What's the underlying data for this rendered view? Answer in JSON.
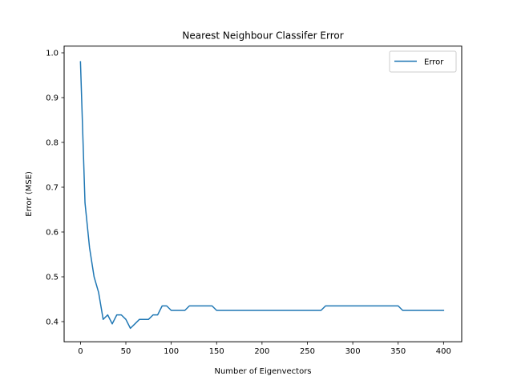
{
  "chart_data": {
    "type": "line",
    "title": "Nearest Neighbour Classifer Error",
    "xlabel": "Number of Eigenvectors",
    "ylabel": "Error (MSE)",
    "xlim": [
      -18,
      420
    ],
    "ylim": [
      0.355,
      1.015
    ],
    "xticks": [
      0,
      50,
      100,
      150,
      200,
      250,
      300,
      350,
      400
    ],
    "yticks": [
      0.4,
      0.5,
      0.6,
      0.7,
      0.8,
      0.9,
      1.0
    ],
    "ytick_labels": [
      "0.4",
      "0.5",
      "0.6",
      "0.7",
      "0.8",
      "0.9",
      "1.0"
    ],
    "grid": false,
    "legend": {
      "position": "top-right",
      "entries": [
        "Error"
      ]
    },
    "series": [
      {
        "name": "Error",
        "color": "#1f77b4",
        "x": [
          0,
          5,
          10,
          15,
          20,
          25,
          30,
          35,
          40,
          45,
          50,
          55,
          60,
          65,
          70,
          75,
          80,
          85,
          90,
          95,
          100,
          105,
          110,
          115,
          120,
          125,
          130,
          135,
          140,
          145,
          150,
          155,
          160,
          165,
          170,
          175,
          180,
          185,
          190,
          195,
          200,
          205,
          210,
          215,
          220,
          225,
          230,
          235,
          240,
          245,
          250,
          255,
          260,
          265,
          270,
          275,
          280,
          285,
          290,
          295,
          300,
          305,
          310,
          315,
          320,
          325,
          330,
          335,
          340,
          345,
          350,
          355,
          360,
          365,
          370,
          375,
          380,
          385,
          390,
          395,
          400
        ],
        "values": [
          0.98,
          0.665,
          0.565,
          0.5,
          0.465,
          0.405,
          0.415,
          0.395,
          0.415,
          0.415,
          0.405,
          0.385,
          0.395,
          0.405,
          0.405,
          0.405,
          0.415,
          0.415,
          0.435,
          0.435,
          0.425,
          0.425,
          0.425,
          0.425,
          0.435,
          0.435,
          0.435,
          0.435,
          0.435,
          0.435,
          0.425,
          0.425,
          0.425,
          0.425,
          0.425,
          0.425,
          0.425,
          0.425,
          0.425,
          0.425,
          0.425,
          0.425,
          0.425,
          0.425,
          0.425,
          0.425,
          0.425,
          0.425,
          0.425,
          0.425,
          0.425,
          0.425,
          0.425,
          0.425,
          0.435,
          0.435,
          0.435,
          0.435,
          0.435,
          0.435,
          0.435,
          0.435,
          0.435,
          0.435,
          0.435,
          0.435,
          0.435,
          0.435,
          0.435,
          0.435,
          0.435,
          0.425,
          0.425,
          0.425,
          0.425,
          0.425,
          0.425,
          0.425,
          0.425,
          0.425,
          0.425
        ]
      }
    ]
  }
}
